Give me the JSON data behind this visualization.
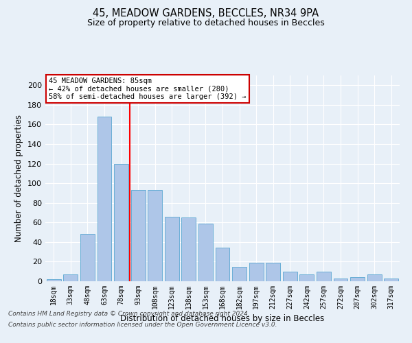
{
  "title_line1": "45, MEADOW GARDENS, BECCLES, NR34 9PA",
  "title_line2": "Size of property relative to detached houses in Beccles",
  "xlabel": "Distribution of detached houses by size in Beccles",
  "ylabel": "Number of detached properties",
  "categories": [
    "18sqm",
    "33sqm",
    "48sqm",
    "63sqm",
    "78sqm",
    "93sqm",
    "108sqm",
    "123sqm",
    "138sqm",
    "153sqm",
    "168sqm",
    "182sqm",
    "197sqm",
    "212sqm",
    "227sqm",
    "242sqm",
    "257sqm",
    "272sqm",
    "287sqm",
    "302sqm",
    "317sqm"
  ],
  "values": [
    2,
    7,
    48,
    168,
    120,
    93,
    93,
    66,
    65,
    59,
    34,
    15,
    19,
    19,
    10,
    7,
    10,
    3,
    4,
    7,
    3
  ],
  "bar_color": "#aec6e8",
  "bar_edge_color": "#6aaed6",
  "property_bin_index": 4,
  "annotation_line1": "45 MEADOW GARDENS: 85sqm",
  "annotation_line2": "← 42% of detached houses are smaller (280)",
  "annotation_line3": "58% of semi-detached houses are larger (392) →",
  "annotation_box_color": "#ffffff",
  "annotation_box_edge_color": "#cc0000",
  "footer_line1": "Contains HM Land Registry data © Crown copyright and database right 2024.",
  "footer_line2": "Contains public sector information licensed under the Open Government Licence v3.0.",
  "ylim": [
    0,
    210
  ],
  "yticks": [
    0,
    20,
    40,
    60,
    80,
    100,
    120,
    140,
    160,
    180,
    200
  ],
  "background_color": "#e8f0f8",
  "grid_color": "#ffffff"
}
